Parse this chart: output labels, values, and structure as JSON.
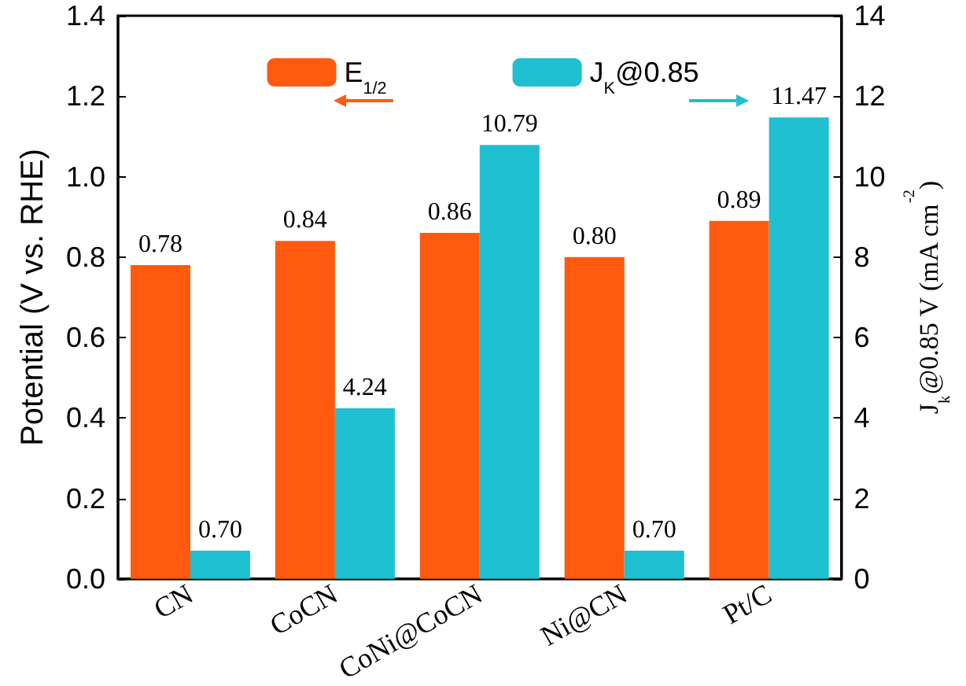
{
  "chart_data": {
    "type": "bar",
    "categories": [
      "CN",
      "CoCN",
      "CoNi@CoCN",
      "Ni@CN",
      "Pt/C"
    ],
    "series": [
      {
        "name": "E$_{1/2}$",
        "color": "#ff5a0f",
        "values": [
          0.78,
          0.84,
          0.86,
          0.8,
          0.89
        ],
        "value_labels": [
          "0.78",
          "0.84",
          "0.86",
          "0.80",
          "0.89"
        ]
      },
      {
        "name": "J$_{K}$@0.85",
        "color": "#1ec0d0",
        "axis": "y2",
        "values": [
          0.7,
          4.24,
          10.79,
          0.7,
          11.47
        ],
        "value_labels": [
          "0.70",
          "4.24",
          "10.79",
          "0.70",
          "11.47"
        ]
      }
    ],
    "ylabel": "Potential (V vs. RHE)",
    "y2label": "J$_{k}$@0.85 V (mA cm$^{-2}$)",
    "ylim": [
      0,
      1.4
    ],
    "yticks": [
      {
        "value": 0,
        "label": "0.0"
      },
      {
        "value": 0.2,
        "label": "0.2"
      },
      {
        "value": 0.4,
        "label": "0.4"
      },
      {
        "value": 0.6,
        "label": "0.6"
      },
      {
        "value": 0.8,
        "label": "0.8"
      },
      {
        "value": 1.0,
        "label": "1.0"
      },
      {
        "value": 1.2,
        "label": "1.2"
      },
      {
        "value": 1.4,
        "label": "1.4"
      }
    ],
    "y2lim": [
      0,
      14
    ],
    "y2ticks": [
      0,
      2,
      4,
      6,
      8,
      10,
      12,
      14
    ],
    "legend": "top",
    "grid": false
  }
}
